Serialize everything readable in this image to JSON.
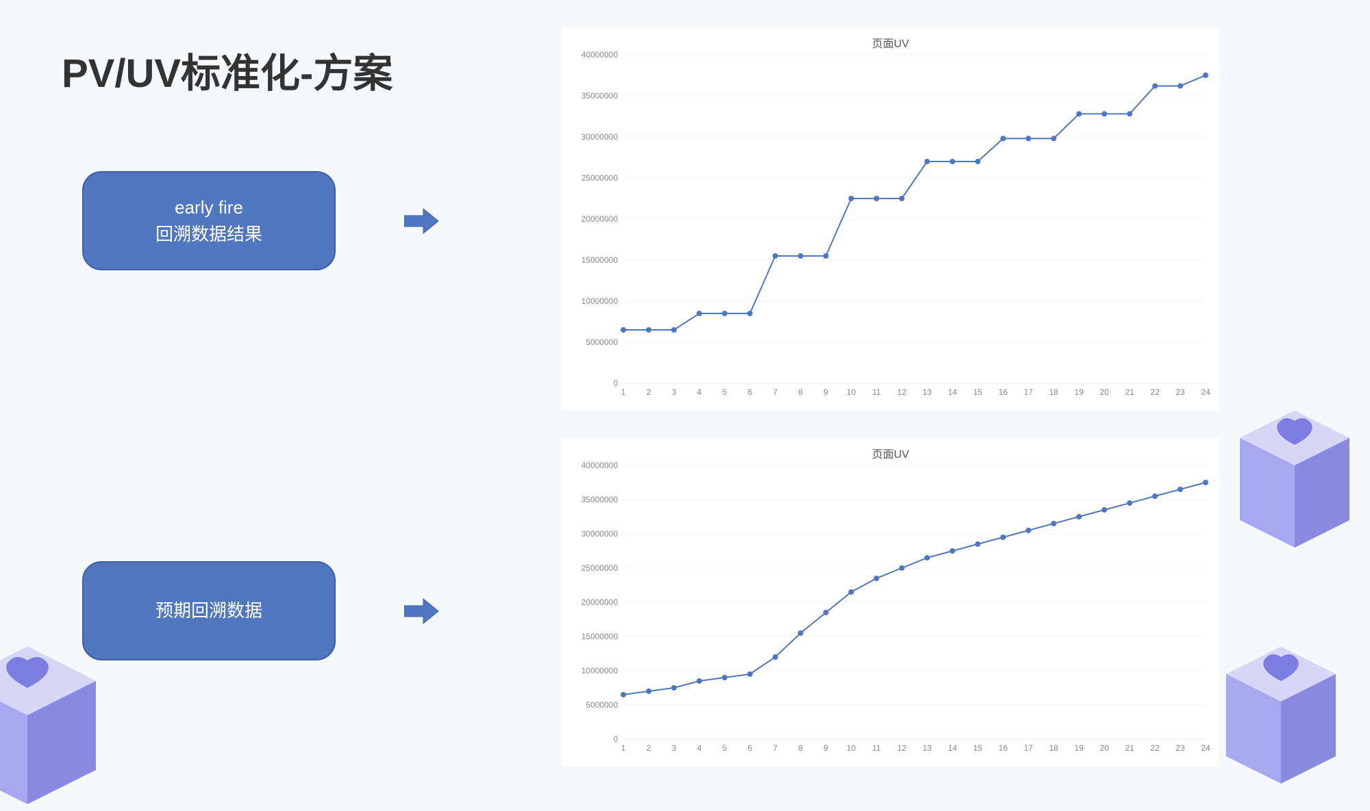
{
  "title": "PV/UV标准化-方案",
  "boxes": {
    "box1_line1": "early fire",
    "box1_line2": "回溯数据结果",
    "box2": "预期回溯数据"
  },
  "colors": {
    "box_fill": "#5077c0",
    "box_border": "#3d5fa0",
    "box_text": "#ffffff",
    "arrow": "#4f77c1",
    "bg": "#f5f8fc",
    "chart_bg": "#ffffff",
    "line": "#4f77c1",
    "marker": "#4f77c1",
    "grid": "#e8e8e8",
    "axis_text": "#888888",
    "decor_main": "#a7a8f0",
    "decor_top": "#d6d7f7",
    "decor_side": "#8a8be0"
  },
  "chart1": {
    "title": "页面UV",
    "type": "line",
    "x": [
      1,
      2,
      3,
      4,
      5,
      6,
      7,
      8,
      9,
      10,
      11,
      12,
      13,
      14,
      15,
      16,
      17,
      18,
      19,
      20,
      21,
      22,
      23,
      24
    ],
    "y": [
      6500000,
      6500000,
      6500000,
      8500000,
      8500000,
      8500000,
      15500000,
      15500000,
      15500000,
      22500000,
      22500000,
      22500000,
      27000000,
      27000000,
      27000000,
      29800000,
      29800000,
      29800000,
      32800000,
      32800000,
      32800000,
      36200000,
      36200000,
      37500000
    ],
    "ylim": [
      0,
      40000000
    ],
    "ytick_step": 5000000,
    "yticks": [
      "0",
      "5000000",
      "10000000",
      "15000000",
      "20000000",
      "25000000",
      "30000000",
      "35000000",
      "40000000"
    ],
    "line_color": "#4f77c1",
    "line_width": 2,
    "marker_color": "#4f77c1",
    "marker_size": 4,
    "grid": true,
    "grid_color": "#f0f0f0",
    "axis_fontsize": 12
  },
  "chart2": {
    "title": "页面UV",
    "type": "line",
    "x": [
      1,
      2,
      3,
      4,
      5,
      6,
      7,
      8,
      9,
      10,
      11,
      12,
      13,
      14,
      15,
      16,
      17,
      18,
      19,
      20,
      21,
      22,
      23,
      24
    ],
    "y": [
      6500000,
      7000000,
      7500000,
      8500000,
      9000000,
      9500000,
      12000000,
      15500000,
      18500000,
      21500000,
      23500000,
      25000000,
      26500000,
      27500000,
      28500000,
      29500000,
      30500000,
      31500000,
      32500000,
      33500000,
      34500000,
      35500000,
      36500000,
      37500000
    ],
    "ylim": [
      0,
      40000000
    ],
    "ytick_step": 5000000,
    "yticks": [
      "0",
      "5000000",
      "10000000",
      "15000000",
      "20000000",
      "25000000",
      "30000000",
      "35000000",
      "40000000"
    ],
    "line_color": "#4f77c1",
    "line_width": 2,
    "marker_color": "#4f77c1",
    "marker_size": 4,
    "grid": true,
    "grid_color": "#f0f0f0",
    "axis_fontsize": 12
  }
}
